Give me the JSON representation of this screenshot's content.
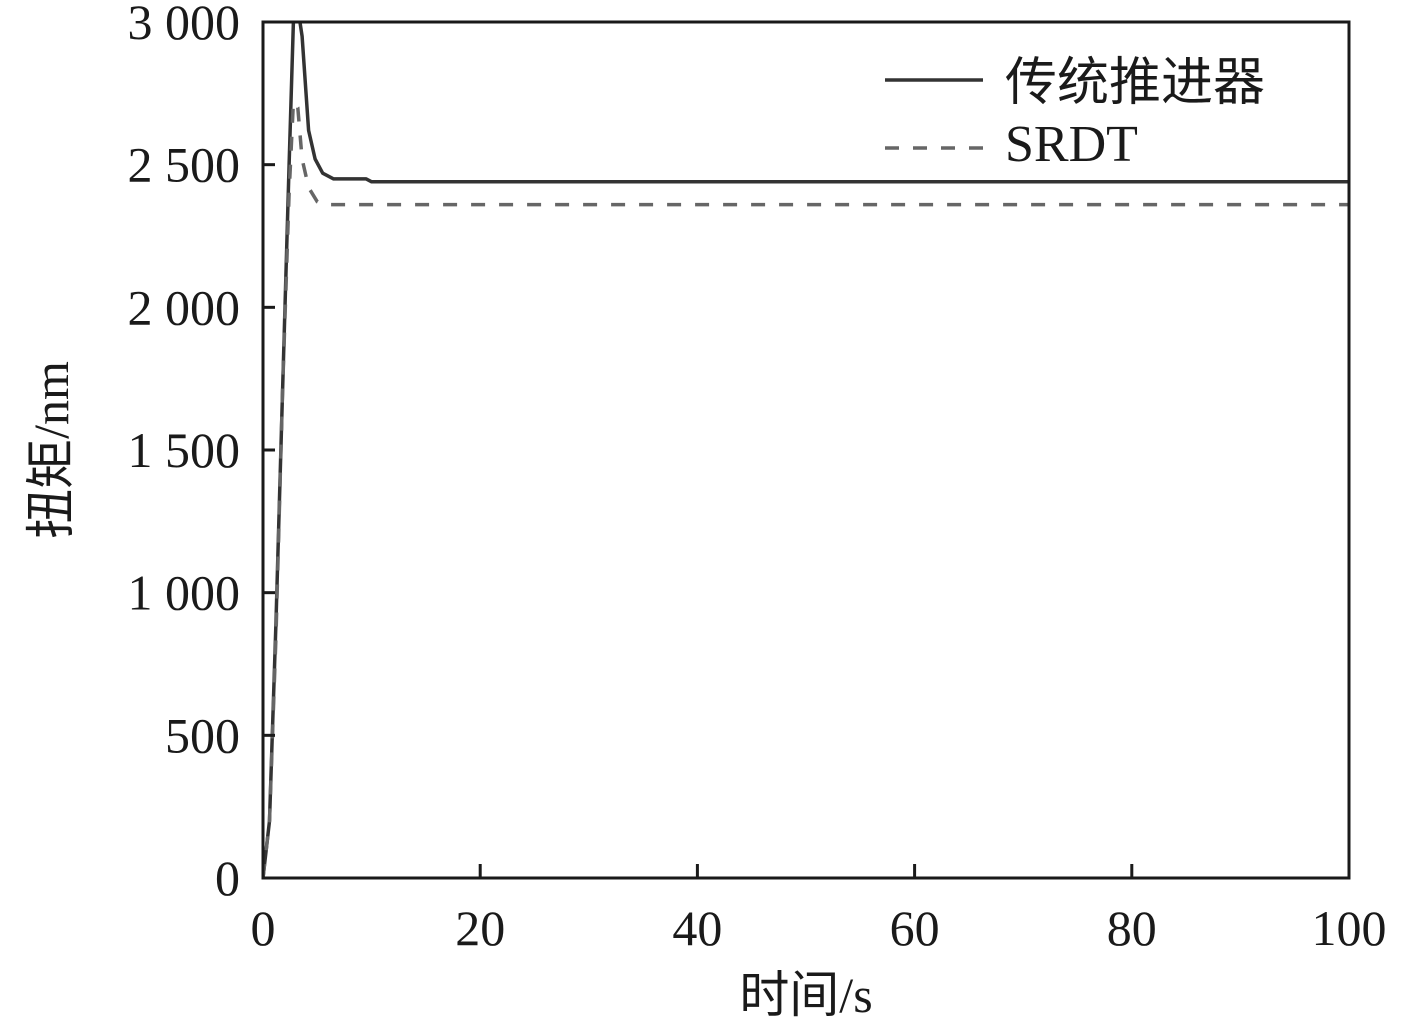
{
  "chart_data": {
    "type": "line",
    "xlabel": "时间/s",
    "ylabel": "扭矩/nm",
    "xlim": [
      0,
      100
    ],
    "ylim": [
      0,
      3000
    ],
    "x_ticks": [
      0,
      20,
      40,
      60,
      80,
      100
    ],
    "x_tick_labels": [
      "0",
      "20",
      "40",
      "60",
      "80",
      "100"
    ],
    "y_ticks": [
      0,
      500,
      1000,
      1500,
      2000,
      2500,
      3000
    ],
    "y_tick_labels": [
      "0",
      "500",
      "1 000",
      "1 500",
      "2 000",
      "2 500",
      "3 000"
    ],
    "grid": false,
    "legend_position": "top-right",
    "series": [
      {
        "name": "传统推进器",
        "style": "solid",
        "color": "#333333",
        "x": [
          0,
          0.6,
          1.2,
          1.8,
          2.4,
          2.8,
          3.2,
          3.6,
          4.2,
          4.8,
          5.5,
          6.5,
          8,
          9.5,
          10,
          100
        ],
        "y": [
          0,
          200,
          900,
          1700,
          2500,
          3000,
          3050,
          2950,
          2620,
          2520,
          2470,
          2450,
          2450,
          2450,
          2440,
          2440
        ]
      },
      {
        "name": "SRDT",
        "style": "dashed",
        "color": "#666666",
        "x": [
          0,
          0.6,
          1.2,
          1.8,
          2.4,
          2.8,
          3.2,
          3.6,
          4.2,
          5,
          5.6,
          100
        ],
        "y": [
          0,
          200,
          850,
          1700,
          2400,
          2720,
          2700,
          2520,
          2420,
          2370,
          2360,
          2360
        ]
      }
    ]
  }
}
